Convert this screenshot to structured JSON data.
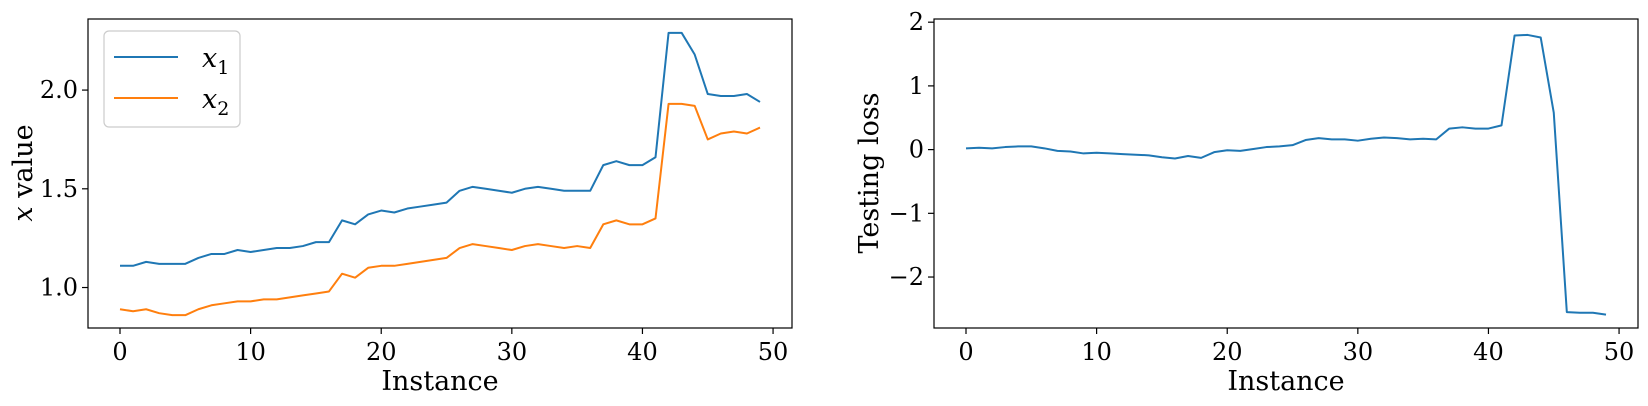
{
  "chart_data": [
    {
      "type": "line",
      "xlabel": "Instance",
      "ylabel_var": "x",
      "ylabel_rest": " value",
      "xlim": [
        -2.45,
        51.45
      ],
      "ylim": [
        0.795,
        2.36
      ],
      "xticks": [
        0,
        10,
        20,
        30,
        40,
        50
      ],
      "yticks": [
        1.0,
        1.5,
        2.0
      ],
      "ytick_labels": [
        "1.0",
        "1.5",
        "2.0"
      ],
      "legend_position": "top-left",
      "x": [
        0,
        1,
        2,
        3,
        4,
        5,
        6,
        7,
        8,
        9,
        10,
        11,
        12,
        13,
        14,
        15,
        16,
        17,
        18,
        19,
        20,
        21,
        22,
        23,
        24,
        25,
        26,
        27,
        28,
        29,
        30,
        31,
        32,
        33,
        34,
        35,
        36,
        37,
        38,
        39,
        40,
        41,
        42,
        43,
        44,
        45,
        46,
        47,
        48,
        49
      ],
      "series": [
        {
          "name": "x",
          "subscript": "1",
          "color": "#1f77b4",
          "values": [
            1.11,
            1.11,
            1.13,
            1.12,
            1.12,
            1.12,
            1.15,
            1.17,
            1.17,
            1.19,
            1.18,
            1.19,
            1.2,
            1.2,
            1.21,
            1.23,
            1.23,
            1.34,
            1.32,
            1.37,
            1.39,
            1.38,
            1.4,
            1.41,
            1.42,
            1.43,
            1.49,
            1.51,
            1.5,
            1.49,
            1.48,
            1.5,
            1.51,
            1.5,
            1.49,
            1.49,
            1.49,
            1.62,
            1.64,
            1.62,
            1.62,
            1.66,
            2.29,
            2.29,
            2.18,
            1.98,
            1.97,
            1.97,
            1.98,
            1.94
          ]
        },
        {
          "name": "x",
          "subscript": "2",
          "color": "#ff7f0e",
          "values": [
            0.89,
            0.88,
            0.89,
            0.87,
            0.86,
            0.86,
            0.89,
            0.91,
            0.92,
            0.93,
            0.93,
            0.94,
            0.94,
            0.95,
            0.96,
            0.97,
            0.98,
            1.07,
            1.05,
            1.1,
            1.11,
            1.11,
            1.12,
            1.13,
            1.14,
            1.15,
            1.2,
            1.22,
            1.21,
            1.2,
            1.19,
            1.21,
            1.22,
            1.21,
            1.2,
            1.21,
            1.2,
            1.32,
            1.34,
            1.32,
            1.32,
            1.35,
            1.93,
            1.93,
            1.92,
            1.75,
            1.78,
            1.79,
            1.78,
            1.81
          ]
        }
      ]
    },
    {
      "type": "line",
      "xlabel": "Instance",
      "ylabel": "Testing loss",
      "xlim": [
        -2.45,
        51.45
      ],
      "ylim": [
        -2.8,
        2.05
      ],
      "xticks": [
        0,
        10,
        20,
        30,
        40,
        50
      ],
      "yticks": [
        -2,
        -1,
        0,
        1,
        2
      ],
      "ytick_labels": [
        "−2",
        "−1",
        "0",
        "1",
        "2"
      ],
      "x": [
        0,
        1,
        2,
        3,
        4,
        5,
        6,
        7,
        8,
        9,
        10,
        11,
        12,
        13,
        14,
        15,
        16,
        17,
        18,
        19,
        20,
        21,
        22,
        23,
        24,
        25,
        26,
        27,
        28,
        29,
        30,
        31,
        32,
        33,
        34,
        35,
        36,
        37,
        38,
        39,
        40,
        41,
        42,
        43,
        44,
        45,
        46,
        47,
        48,
        49
      ],
      "series": [
        {
          "color": "#1f77b4",
          "values": [
            0.02,
            0.03,
            0.02,
            0.04,
            0.05,
            0.05,
            0.02,
            -0.02,
            -0.03,
            -0.06,
            -0.05,
            -0.06,
            -0.07,
            -0.08,
            -0.09,
            -0.12,
            -0.14,
            -0.1,
            -0.13,
            -0.04,
            -0.01,
            -0.02,
            0.01,
            0.04,
            0.05,
            0.07,
            0.15,
            0.18,
            0.16,
            0.16,
            0.14,
            0.17,
            0.19,
            0.18,
            0.16,
            0.17,
            0.16,
            0.33,
            0.35,
            0.33,
            0.33,
            0.38,
            1.79,
            1.8,
            1.76,
            0.58,
            -2.55,
            -2.56,
            -2.56,
            -2.59
          ]
        }
      ]
    }
  ]
}
